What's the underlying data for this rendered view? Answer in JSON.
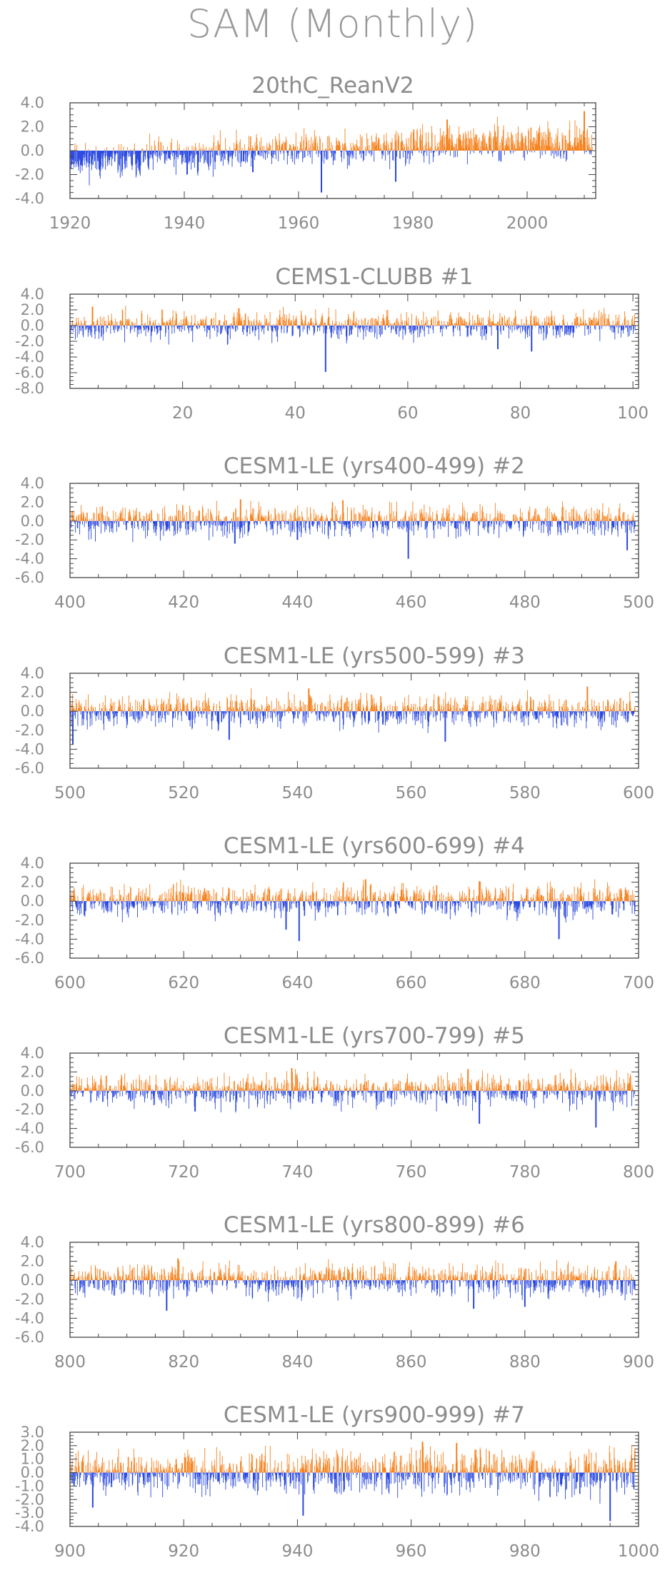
{
  "figure": {
    "title": "SAM (Monthly)",
    "colors": {
      "positive": "#f5821f",
      "negative": "#2a48e0",
      "frame": "#444444",
      "text": "#8c8c8c"
    }
  },
  "chart_data": [
    {
      "type": "bar",
      "title": "20thC_ReanV2",
      "xlim": [
        1920,
        2012
      ],
      "ylim": [
        -4.0,
        4.0
      ],
      "xticks": [
        1920,
        1940,
        1960,
        1980,
        2000
      ],
      "yticks": [
        -4.0,
        -2.0,
        0.0,
        2.0,
        4.0
      ],
      "ytick_labels": [
        "-4.0",
        "-2.0",
        "0.0",
        "2.0",
        "4.0"
      ],
      "months_per_unit": 12,
      "anchors": {
        "x": [
          1920,
          1925,
          1930,
          1935,
          1940,
          1945,
          1950,
          1955,
          1960,
          1965,
          1970,
          1975,
          1980,
          1985,
          1990,
          1995,
          2000,
          2005,
          2011
        ],
        "mean": [
          -0.7,
          -0.9,
          -0.9,
          -0.5,
          -0.6,
          -0.3,
          0.0,
          0.1,
          0.2,
          0.0,
          0.1,
          0.2,
          0.3,
          0.5,
          0.6,
          0.7,
          0.7,
          0.7,
          0.8
        ]
      },
      "noise_amplitude": 0.7,
      "extremes": [
        [
          1940.5,
          -2.0
        ],
        [
          1952,
          -1.8
        ],
        [
          1964,
          -3.5
        ],
        [
          1977,
          -2.6
        ],
        [
          1986,
          2.6
        ],
        [
          2010,
          3.3
        ]
      ],
      "seed": 11
    },
    {
      "type": "bar",
      "title": "CEMS1-CLUBB",
      "title_suffix": "#1",
      "xlim": [
        0,
        101
      ],
      "ylim": [
        -8.0,
        4.0
      ],
      "xticks": [
        20,
        40,
        60,
        80,
        100
      ],
      "yticks": [
        -8.0,
        -6.0,
        -4.0,
        -2.0,
        0.0,
        2.0,
        4.0
      ],
      "ytick_labels": [
        "-8.0",
        "-6.0",
        "-4.0",
        "-2.0",
        "0.0",
        "2.0",
        "4.0"
      ],
      "months_per_unit": 12,
      "noise_amplitude": 0.85,
      "extremes": [
        [
          45.4,
          -5.9
        ],
        [
          76,
          -3.0
        ],
        [
          82,
          -3.3
        ],
        [
          4,
          2.4
        ],
        [
          30,
          2.2
        ]
      ],
      "seed": 21
    },
    {
      "type": "bar",
      "title": "CESM1-LE (yrs400-499)",
      "title_suffix": "#2",
      "xlim": [
        400,
        500
      ],
      "ylim": [
        -6.0,
        4.0
      ],
      "xticks": [
        400,
        420,
        440,
        460,
        480,
        500
      ],
      "yticks": [
        -6.0,
        -4.0,
        -2.0,
        0.0,
        2.0,
        4.0
      ],
      "ytick_labels": [
        "-6.0",
        "-4.0",
        "-2.0",
        "0.0",
        "2.0",
        "4.0"
      ],
      "months_per_unit": 12,
      "noise_amplitude": 0.8,
      "extremes": [
        [
          459.5,
          -4.0
        ],
        [
          429,
          -2.4
        ],
        [
          440,
          -2.0
        ],
        [
          498,
          -3.1
        ],
        [
          430,
          2.3
        ],
        [
          448,
          2.2
        ]
      ],
      "seed": 31
    },
    {
      "type": "bar",
      "title": "CESM1-LE (yrs500-599)",
      "title_suffix": "#3",
      "xlim": [
        500,
        600
      ],
      "ylim": [
        -6.0,
        4.0
      ],
      "xticks": [
        500,
        520,
        540,
        560,
        580,
        600
      ],
      "yticks": [
        -6.0,
        -4.0,
        -2.0,
        0.0,
        2.0,
        4.0
      ],
      "ytick_labels": [
        "-6.0",
        "-4.0",
        "-2.0",
        "0.0",
        "2.0",
        "4.0"
      ],
      "months_per_unit": 12,
      "noise_amplitude": 0.8,
      "extremes": [
        [
          500.5,
          -3.5
        ],
        [
          528,
          -3.0
        ],
        [
          566,
          -3.2
        ],
        [
          591,
          2.6
        ],
        [
          542,
          2.4
        ]
      ],
      "seed": 41
    },
    {
      "type": "bar",
      "title": "CESM1-LE (yrs600-699)",
      "title_suffix": "#4",
      "xlim": [
        600,
        700
      ],
      "ylim": [
        -6.0,
        4.0
      ],
      "xticks": [
        600,
        620,
        640,
        660,
        680,
        700
      ],
      "yticks": [
        -6.0,
        -4.0,
        -2.0,
        0.0,
        2.0,
        4.0
      ],
      "ytick_labels": [
        "-6.0",
        "-4.0",
        "-2.0",
        "0.0",
        "2.0",
        "4.0"
      ],
      "months_per_unit": 12,
      "noise_amplitude": 0.8,
      "extremes": [
        [
          640.3,
          -4.2
        ],
        [
          638,
          -3.0
        ],
        [
          686,
          -4.0
        ],
        [
          652,
          2.3
        ],
        [
          672,
          2.1
        ]
      ],
      "seed": 51
    },
    {
      "type": "bar",
      "title": "CESM1-LE (yrs700-799)",
      "title_suffix": "#5",
      "xlim": [
        700,
        800
      ],
      "ylim": [
        -6.0,
        4.0
      ],
      "xticks": [
        700,
        720,
        740,
        760,
        780,
        800
      ],
      "yticks": [
        -6.0,
        -4.0,
        -2.0,
        0.0,
        2.0,
        4.0
      ],
      "ytick_labels": [
        "-6.0",
        "-4.0",
        "-2.0",
        "0.0",
        "2.0",
        "4.0"
      ],
      "months_per_unit": 12,
      "noise_amplitude": 0.8,
      "extremes": [
        [
          792.5,
          -3.9
        ],
        [
          772,
          -3.5
        ],
        [
          722,
          -2.2
        ],
        [
          739,
          2.4
        ],
        [
          770,
          2.3
        ]
      ],
      "seed": 61
    },
    {
      "type": "bar",
      "title": "CESM1-LE (yrs800-899)",
      "title_suffix": "#6",
      "xlim": [
        800,
        900
      ],
      "ylim": [
        -6.0,
        4.0
      ],
      "xticks": [
        800,
        820,
        840,
        860,
        880,
        900
      ],
      "yticks": [
        -6.0,
        -4.0,
        -2.0,
        0.0,
        2.0,
        4.0
      ],
      "ytick_labels": [
        "-6.0",
        "-4.0",
        "-2.0",
        "0.0",
        "2.0",
        "4.0"
      ],
      "months_per_unit": 12,
      "noise_amplitude": 0.8,
      "extremes": [
        [
          817,
          -3.2
        ],
        [
          871,
          -3.0
        ],
        [
          880,
          -2.8
        ],
        [
          819,
          2.3
        ],
        [
          896,
          2.0
        ]
      ],
      "seed": 71
    },
    {
      "type": "bar",
      "title": "CESM1-LE (yrs900-999)",
      "title_suffix": "#7",
      "xlim": [
        900,
        1000
      ],
      "ylim": [
        -4.0,
        3.0
      ],
      "xticks": [
        900,
        920,
        940,
        960,
        980,
        1000
      ],
      "yticks": [
        -4.0,
        -3.0,
        -2.0,
        -1.0,
        0.0,
        1.0,
        2.0,
        3.0
      ],
      "ytick_labels": [
        "-4.0",
        "-3.0",
        "-2.0",
        "-1.0",
        "0.0",
        "1.0",
        "2.0",
        "3.0"
      ],
      "months_per_unit": 12,
      "noise_amplitude": 0.8,
      "extremes": [
        [
          904,
          -2.6
        ],
        [
          941,
          -3.2
        ],
        [
          995,
          -3.6
        ],
        [
          962,
          2.3
        ],
        [
          968,
          2.2
        ]
      ],
      "seed": 81
    }
  ]
}
